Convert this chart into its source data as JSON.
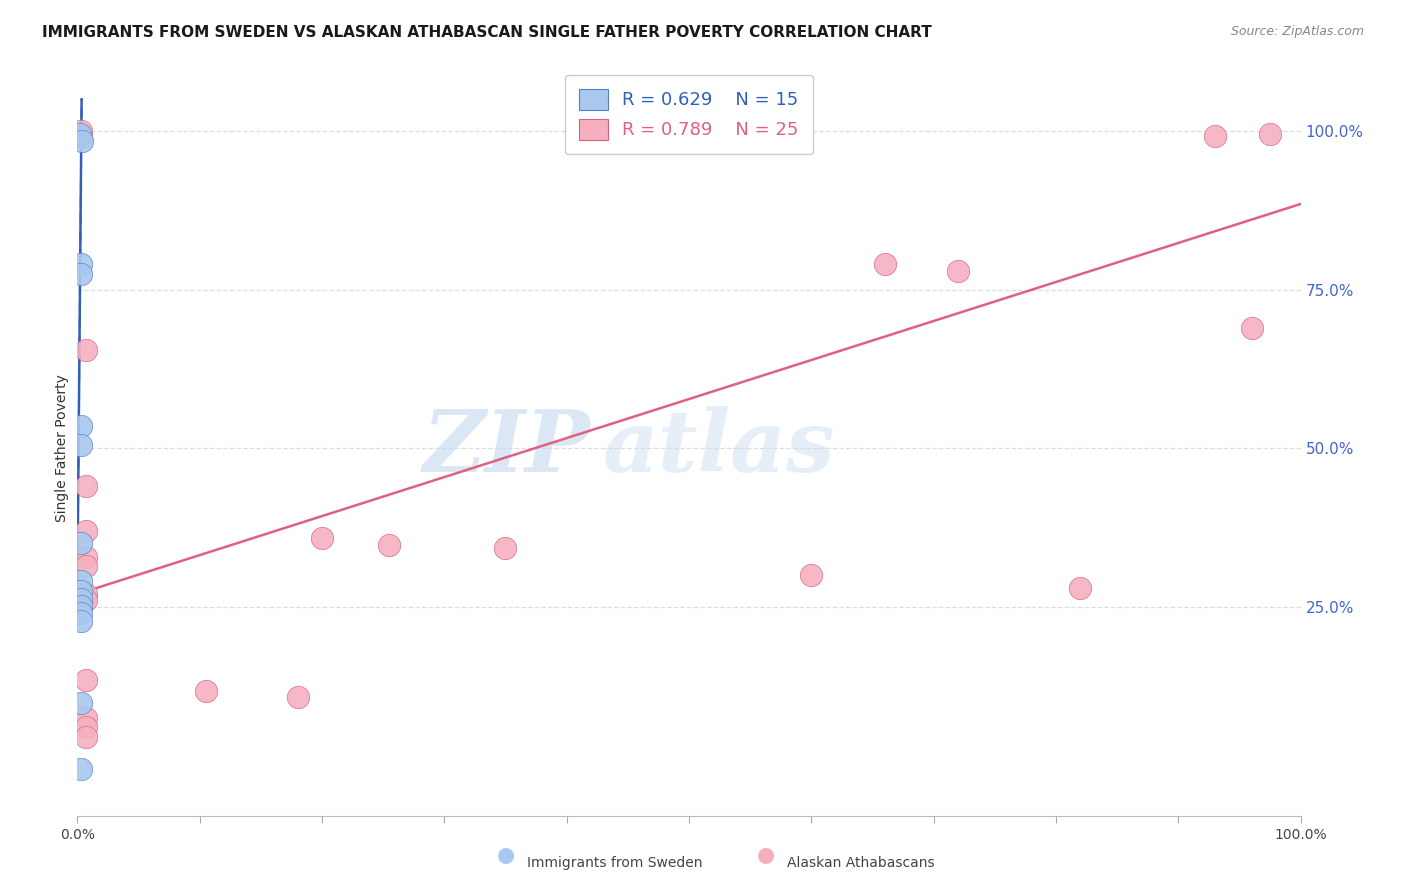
{
  "title": "IMMIGRANTS FROM SWEDEN VS ALASKAN ATHABASCAN SINGLE FATHER POVERTY CORRELATION CHART",
  "source": "Source: ZipAtlas.com",
  "ylabel": "Single Father Poverty",
  "ytick_labels": [
    "100.0%",
    "75.0%",
    "50.0%",
    "25.0%"
  ],
  "ytick_values": [
    1.0,
    0.75,
    0.5,
    0.25
  ],
  "xlim": [
    0.0,
    1.0
  ],
  "ylim": [
    -0.08,
    1.08
  ],
  "legend_blue_r": "R = 0.629",
  "legend_blue_n": "N = 15",
  "legend_pink_r": "R = 0.789",
  "legend_pink_n": "N = 25",
  "legend_blue_label": "Immigrants from Sweden",
  "legend_pink_label": "Alaskan Athabascans",
  "watermark_zip": "ZIP",
  "watermark_atlas": "atlas",
  "blue_fill": "#A8C8F0",
  "pink_fill": "#F5B0C0",
  "blue_edge": "#5580C0",
  "pink_edge": "#D86080",
  "blue_line": "#3060B8",
  "pink_line": "#E06080",
  "blue_scatter": [
    [
      0.002,
      0.995
    ],
    [
      0.004,
      0.985
    ],
    [
      0.003,
      0.79
    ],
    [
      0.003,
      0.775
    ],
    [
      0.003,
      0.535
    ],
    [
      0.003,
      0.505
    ],
    [
      0.003,
      0.35
    ],
    [
      0.003,
      0.29
    ],
    [
      0.003,
      0.275
    ],
    [
      0.003,
      0.263
    ],
    [
      0.003,
      0.252
    ],
    [
      0.003,
      0.24
    ],
    [
      0.003,
      0.228
    ],
    [
      0.003,
      0.098
    ],
    [
      0.003,
      -0.005
    ]
  ],
  "pink_scatter": [
    [
      0.003,
      1.0
    ],
    [
      0.003,
      0.99
    ],
    [
      0.975,
      0.995
    ],
    [
      0.93,
      0.992
    ],
    [
      0.007,
      0.655
    ],
    [
      0.66,
      0.79
    ],
    [
      0.72,
      0.78
    ],
    [
      0.96,
      0.69
    ],
    [
      0.007,
      0.44
    ],
    [
      0.007,
      0.37
    ],
    [
      0.2,
      0.358
    ],
    [
      0.255,
      0.348
    ],
    [
      0.35,
      0.342
    ],
    [
      0.007,
      0.328
    ],
    [
      0.007,
      0.315
    ],
    [
      0.6,
      0.3
    ],
    [
      0.82,
      0.28
    ],
    [
      0.007,
      0.27
    ],
    [
      0.007,
      0.26
    ],
    [
      0.007,
      0.135
    ],
    [
      0.105,
      0.118
    ],
    [
      0.18,
      0.108
    ],
    [
      0.007,
      0.075
    ],
    [
      0.007,
      0.06
    ],
    [
      0.007,
      0.045
    ]
  ],
  "blue_line_pts": [
    [
      0.0,
      0.275
    ],
    [
      0.0035,
      1.05
    ]
  ],
  "pink_line_pts": [
    [
      0.0,
      0.27
    ],
    [
      1.0,
      0.885
    ]
  ],
  "title_fontsize": 11,
  "source_fontsize": 9,
  "axis_label_fontsize": 10,
  "legend_fontsize": 13,
  "ytick_color": "#4466CC",
  "grid_color": "#DDDDDD",
  "scatter_size": 260
}
